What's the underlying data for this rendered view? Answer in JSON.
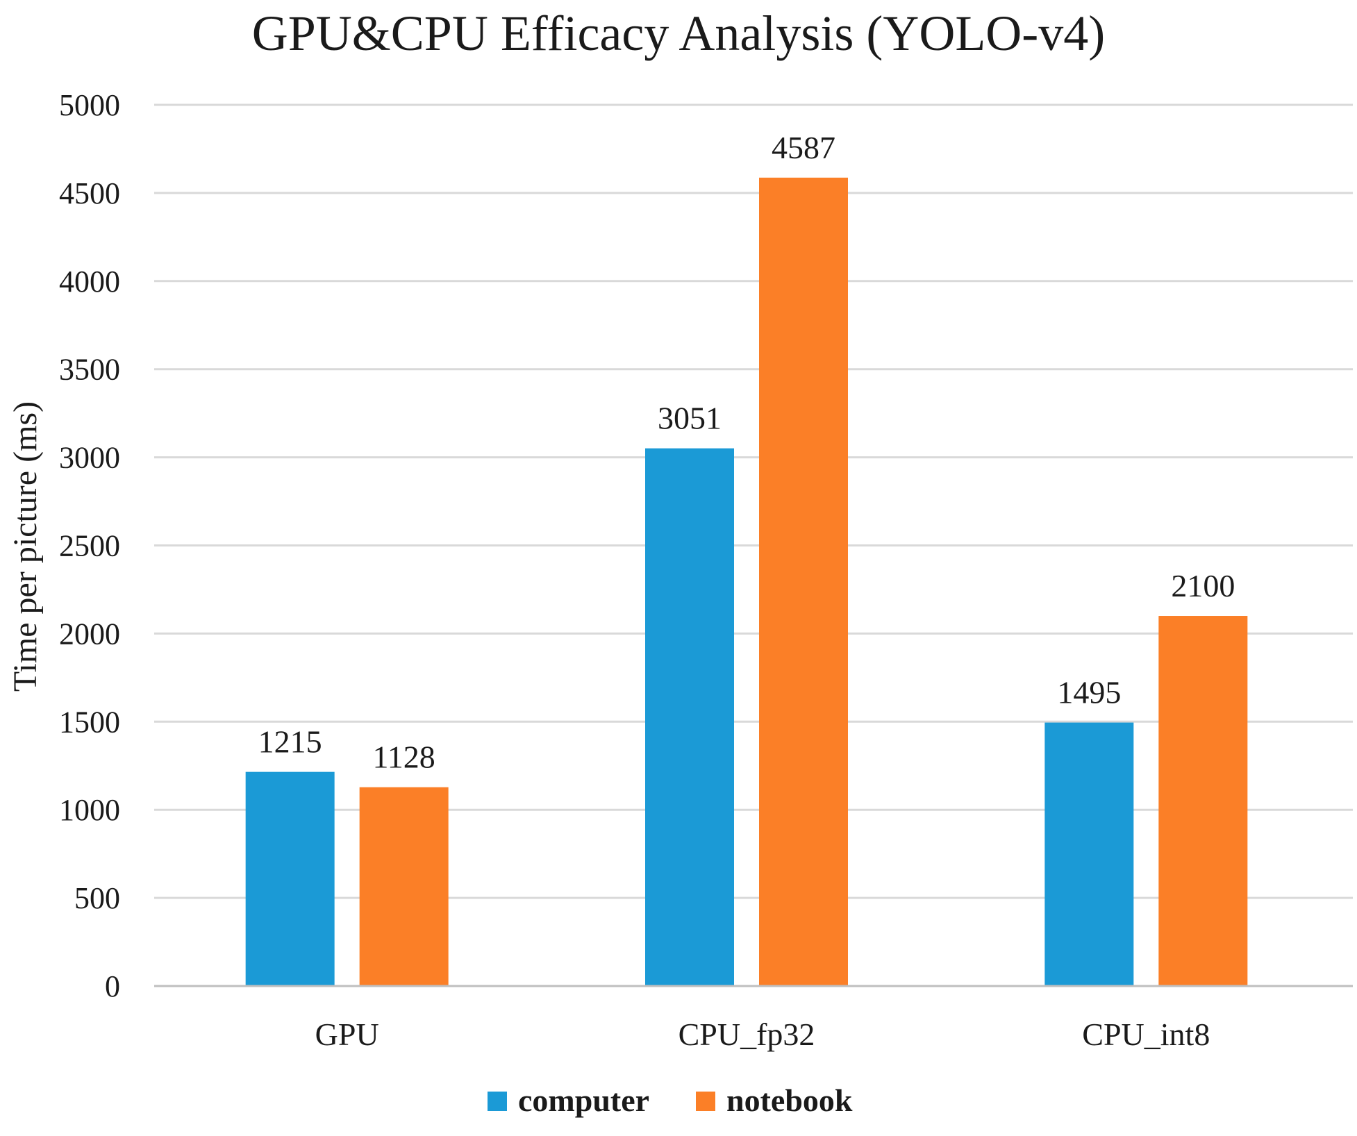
{
  "chart_data": {
    "type": "bar",
    "title": "GPU&CPU Efficacy Analysis (YOLO-v4)",
    "xlabel": "",
    "ylabel": "Time per picture (ms)",
    "categories": [
      "GPU",
      "CPU_fp32",
      "CPU_int8"
    ],
    "series": [
      {
        "name": "computer",
        "values": [
          1215,
          3051,
          1495
        ],
        "color": "#1b9ad6"
      },
      {
        "name": "notebook",
        "values": [
          1128,
          4587,
          2100
        ],
        "color": "#fb7f27"
      }
    ],
    "ylim": [
      0,
      5000
    ],
    "yticks": [
      "0",
      "500",
      "1000",
      "1500",
      "2000",
      "2500",
      "3000",
      "3500",
      "4000",
      "4500",
      "5000"
    ],
    "grid": true,
    "legend_position": "bottom"
  }
}
